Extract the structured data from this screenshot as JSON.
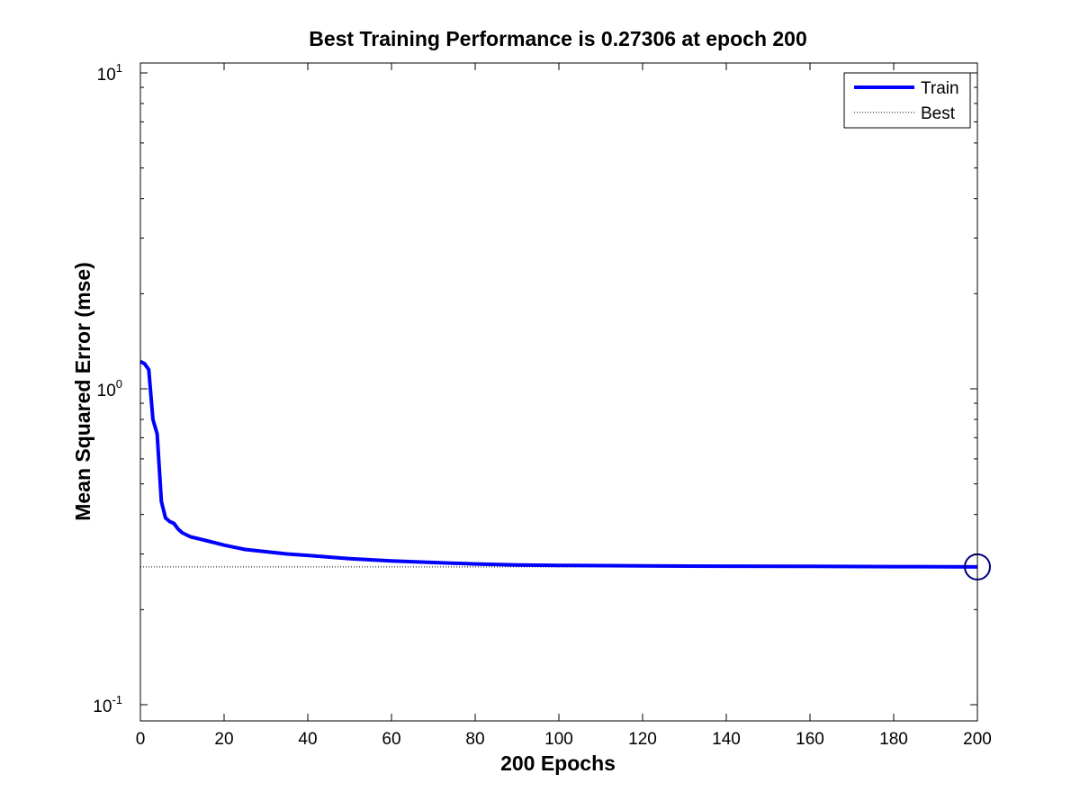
{
  "chart_data": {
    "type": "line",
    "title": "Best Training Performance is 0.27306 at epoch 200",
    "xlabel": "200 Epochs",
    "ylabel": "Mean Squared Error  (mse)",
    "xlim": [
      0,
      200
    ],
    "ylim": [
      0.08,
      11
    ],
    "yscale": "log",
    "grid": false,
    "legend_position": "top-right",
    "x_ticks": [
      0,
      20,
      40,
      60,
      80,
      100,
      120,
      140,
      160,
      180,
      200
    ],
    "x_tick_labels": [
      "0",
      "20",
      "40",
      "60",
      "80",
      "100",
      "120",
      "140",
      "160",
      "180",
      "200"
    ],
    "y_ticks": [
      0.1,
      1,
      10
    ],
    "y_tick_labels": [
      {
        "base": "10",
        "exp": "-1"
      },
      {
        "base": "10",
        "exp": "0"
      },
      {
        "base": "10",
        "exp": "1"
      }
    ],
    "series": [
      {
        "name": "Train",
        "color": "#0000ff",
        "style": "solid",
        "x": [
          0,
          1,
          2,
          3,
          4,
          5,
          6,
          7,
          8,
          9,
          10,
          12,
          14,
          16,
          18,
          20,
          25,
          30,
          35,
          40,
          50,
          60,
          70,
          80,
          90,
          100,
          120,
          140,
          160,
          180,
          200
        ],
        "y": [
          1.22,
          1.2,
          1.15,
          0.8,
          0.72,
          0.44,
          0.39,
          0.38,
          0.375,
          0.36,
          0.35,
          0.34,
          0.335,
          0.33,
          0.325,
          0.32,
          0.31,
          0.305,
          0.3,
          0.297,
          0.29,
          0.285,
          0.282,
          0.279,
          0.277,
          0.276,
          0.275,
          0.2745,
          0.274,
          0.2735,
          0.27306
        ]
      },
      {
        "name": "Best",
        "color": "#000000",
        "style": "dotted",
        "hline_y": 0.27306,
        "vline_x": 200
      }
    ],
    "best_marker": {
      "x": 200,
      "y": 0.27306,
      "color": "#0000ff",
      "shape": "circle"
    }
  }
}
